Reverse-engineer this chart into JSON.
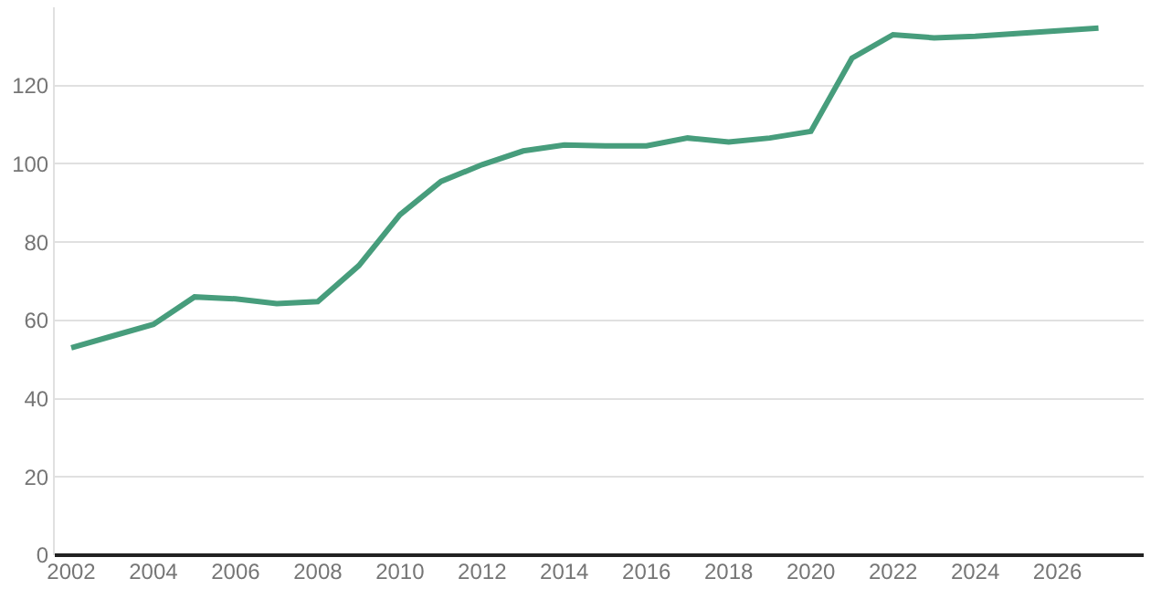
{
  "chart_data": {
    "type": "line",
    "x": [
      2002,
      2003,
      2004,
      2005,
      2006,
      2007,
      2008,
      2009,
      2010,
      2011,
      2012,
      2013,
      2014,
      2015,
      2016,
      2017,
      2018,
      2019,
      2020,
      2021,
      2022,
      2023,
      2024,
      2025,
      2026,
      2027
    ],
    "series": [
      {
        "color": "#479d7c",
        "values": [
          53,
          56,
          59,
          66,
          65.5,
          64.3,
          64.8,
          74,
          87,
          95.5,
          99.8,
          103.3,
          104.8,
          104.6,
          104.6,
          106.6,
          105.6,
          106.6,
          108.3,
          127,
          133,
          132.2,
          132.6,
          133.3,
          134,
          134.7
        ]
      }
    ],
    "xlim": [
      2001.6,
      2028.1
    ],
    "xticks": [
      2002,
      2004,
      2006,
      2008,
      2010,
      2012,
      2014,
      2016,
      2018,
      2020,
      2022,
      2024,
      2026
    ],
    "ylim": [
      0,
      140
    ],
    "yticks": [
      0,
      20,
      40,
      60,
      80,
      100,
      120
    ],
    "grid": "y",
    "marker": "none",
    "line_style": "solid"
  }
}
